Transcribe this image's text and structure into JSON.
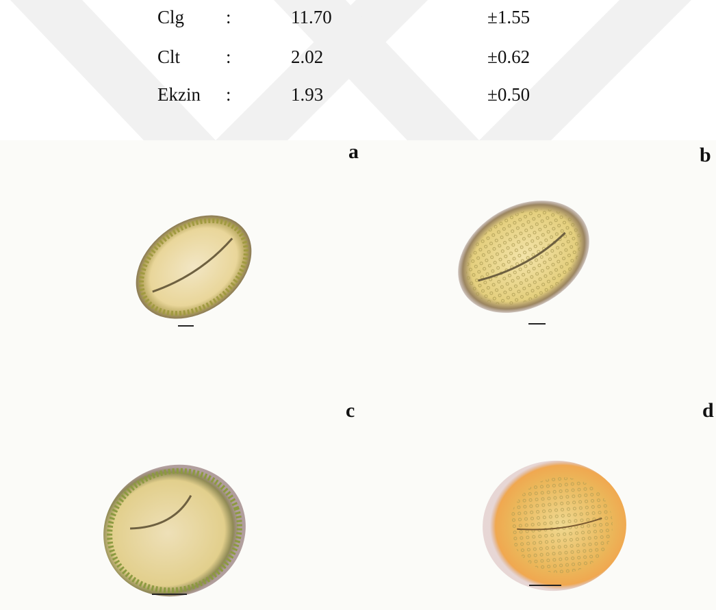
{
  "measurements": {
    "rows": [
      [
        "Clg",
        ":",
        "11.70",
        "±1.55"
      ],
      [
        "Clt",
        ":",
        "2.02",
        "±0.62"
      ],
      [
        "Ekzin",
        ":",
        "1.93",
        "±0.50"
      ]
    ]
  },
  "figure": {
    "panels": [
      "a",
      "b",
      "c",
      "d"
    ]
  }
}
